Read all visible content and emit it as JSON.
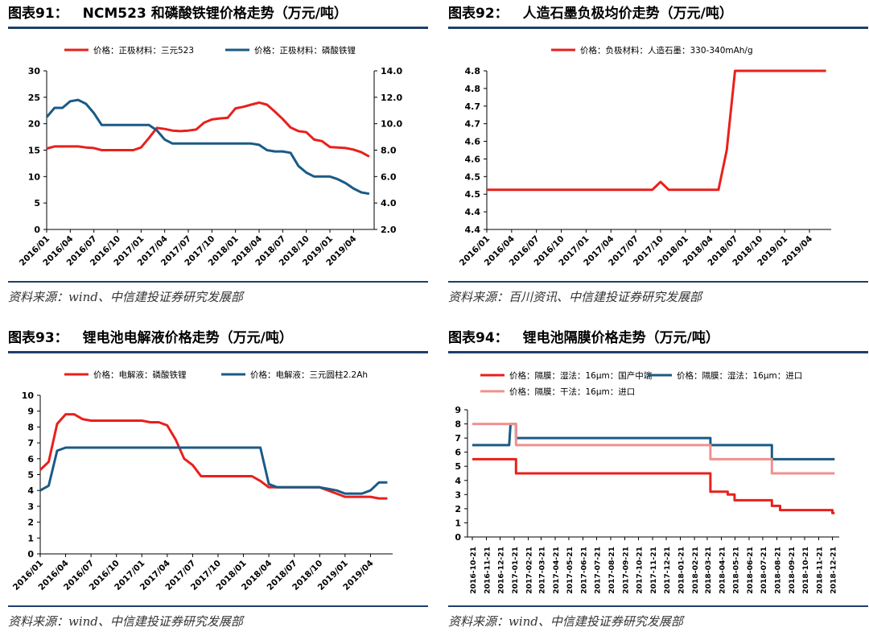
{
  "charts": [
    {
      "number": "图表91：",
      "title": "NCM523 和磷酸铁锂价格走势（万元/吨）",
      "source": "资料来源：wind、中信建投证券研究发展部"
    },
    {
      "number": "图表92：",
      "title": "人造石墨负极均价走势（万元/吨）",
      "source": "资料来源：百川资讯、中信建投证券研究发展部"
    },
    {
      "number": "图表93：",
      "title": "锂电池电解液价格走势（万元/吨）",
      "source": "资料来源：wind、中信建投证券研究发展部"
    },
    {
      "number": "图表94：",
      "title": "锂电池隔膜价格走势（万元/吨）",
      "source": "资料来源：wind、中信建投证券研究发展部"
    }
  ],
  "chart_data": [
    {
      "type": "line",
      "x": [
        "2016/01",
        "2016/02",
        "2016/03",
        "2016/04",
        "2016/05",
        "2016/06",
        "2016/07",
        "2016/08",
        "2016/09",
        "2016/10",
        "2016/11",
        "2016/12",
        "2017/01",
        "2017/02",
        "2017/03",
        "2017/04",
        "2017/05",
        "2017/06",
        "2017/07",
        "2017/08",
        "2017/09",
        "2017/10",
        "2017/11",
        "2017/12",
        "2018/01",
        "2018/02",
        "2018/03",
        "2018/04",
        "2018/05",
        "2018/06",
        "2018/07",
        "2018/08",
        "2018/09",
        "2018/10",
        "2018/11",
        "2018/12",
        "2019/01",
        "2019/02",
        "2019/03",
        "2019/04",
        "2019/05",
        "2019/06"
      ],
      "xticks": [
        "2016/01",
        "2016/04",
        "2016/07",
        "2016/10",
        "2017/01",
        "2017/04",
        "2017/07",
        "2017/10",
        "2018/01",
        "2018/04",
        "2018/07",
        "2018/10",
        "2019/01",
        "2019/04"
      ],
      "series": [
        {
          "name": "价格：正极材料：三元523",
          "axis": "left",
          "color": "#e8201c",
          "values": [
            15.3,
            15.7,
            15.7,
            15.7,
            15.7,
            15.5,
            15.4,
            15.0,
            15.0,
            15.0,
            15.0,
            15.0,
            15.5,
            17.3,
            19.2,
            19.0,
            18.7,
            18.6,
            18.7,
            18.9,
            20.2,
            20.8,
            21.0,
            21.1,
            22.9,
            23.2,
            23.6,
            24.0,
            23.6,
            22.3,
            20.9,
            19.3,
            18.6,
            18.4,
            17.0,
            16.7,
            15.6,
            15.5,
            15.4,
            15.1,
            14.6,
            13.8
          ]
        },
        {
          "name": "价格：正极材料：磷酸铁锂",
          "axis": "right",
          "color": "#1b5a86",
          "values": [
            10.5,
            11.2,
            11.2,
            11.7,
            11.8,
            11.5,
            10.8,
            9.9,
            9.9,
            9.9,
            9.9,
            9.9,
            9.9,
            9.9,
            9.5,
            8.8,
            8.5,
            8.5,
            8.5,
            8.5,
            8.5,
            8.5,
            8.5,
            8.5,
            8.5,
            8.5,
            8.5,
            8.4,
            8.0,
            7.9,
            7.9,
            7.8,
            6.8,
            6.3,
            6.0,
            6.0,
            6.0,
            5.8,
            5.5,
            5.1,
            4.8,
            4.7
          ]
        }
      ],
      "yleft": {
        "min": 0,
        "max": 30,
        "ticks": [
          "0",
          "5",
          "10",
          "15",
          "20",
          "25",
          "30"
        ]
      },
      "yright": {
        "min": 2.0,
        "max": 14.0,
        "ticks": [
          "2.0",
          "4.0",
          "6.0",
          "8.0",
          "10.0",
          "12.0",
          "14.0"
        ]
      }
    },
    {
      "type": "line",
      "x": [
        "2016/01",
        "2016/02",
        "2016/03",
        "2016/04",
        "2016/05",
        "2016/06",
        "2016/07",
        "2016/08",
        "2016/09",
        "2016/10",
        "2016/11",
        "2016/12",
        "2017/01",
        "2017/02",
        "2017/03",
        "2017/04",
        "2017/05",
        "2017/06",
        "2017/07",
        "2017/08",
        "2017/09",
        "2017/10",
        "2017/11",
        "2017/12",
        "2018/01",
        "2018/02",
        "2018/03",
        "2018/04",
        "2018/05",
        "2018/06",
        "2018/07",
        "2018/08",
        "2018/09",
        "2018/10",
        "2018/11",
        "2018/12",
        "2019/01",
        "2019/02",
        "2019/03",
        "2019/04",
        "2019/05",
        "2019/06"
      ],
      "xticks": [
        "2016/01",
        "2016/04",
        "2016/07",
        "2016/10",
        "2017/01",
        "2017/04",
        "2017/07",
        "2017/10",
        "2018/01",
        "2018/04",
        "2018/07",
        "2018/10",
        "2019/01",
        "2019/04"
      ],
      "series": [
        {
          "name": "价格：负极材料：人造石墨：330-340mAh/g",
          "axis": "left",
          "color": "#e8201c",
          "values": [
            4.5,
            4.5,
            4.5,
            4.5,
            4.5,
            4.5,
            4.5,
            4.5,
            4.5,
            4.5,
            4.5,
            4.5,
            4.5,
            4.5,
            4.5,
            4.5,
            4.5,
            4.5,
            4.5,
            4.5,
            4.5,
            4.52,
            4.5,
            4.5,
            4.5,
            4.5,
            4.5,
            4.5,
            4.5,
            4.6,
            4.8,
            4.8,
            4.8,
            4.8,
            4.8,
            4.8,
            4.8,
            4.8,
            4.8,
            4.8,
            4.8,
            4.8
          ]
        }
      ],
      "yleft": {
        "min": 4.4,
        "max": 4.8,
        "ticks": [
          "4.4",
          "4.4",
          "4.5",
          "4.5",
          "4.6",
          "4.6",
          "4.7",
          "4.7",
          "4.8",
          "4.8"
        ]
      }
    },
    {
      "type": "line",
      "x": [
        "2016/01",
        "2016/02",
        "2016/03",
        "2016/04",
        "2016/05",
        "2016/06",
        "2016/07",
        "2016/08",
        "2016/09",
        "2016/10",
        "2016/11",
        "2016/12",
        "2017/01",
        "2017/02",
        "2017/03",
        "2017/04",
        "2017/05",
        "2017/06",
        "2017/07",
        "2017/08",
        "2017/09",
        "2017/10",
        "2017/11",
        "2017/12",
        "2018/01",
        "2018/02",
        "2018/03",
        "2018/04",
        "2018/05",
        "2018/06",
        "2018/07",
        "2018/08",
        "2018/09",
        "2018/10",
        "2018/11",
        "2018/12",
        "2019/01",
        "2019/02",
        "2019/03",
        "2019/04",
        "2019/05",
        "2019/06"
      ],
      "xticks": [
        "2016/01",
        "2016/04",
        "2016/07",
        "2016/10",
        "2017/01",
        "2017/04",
        "2017/07",
        "2017/10",
        "2018/01",
        "2018/04",
        "2018/07",
        "2018/10",
        "2019/01",
        "2019/04"
      ],
      "series": [
        {
          "name": "价格：电解液：磷酸铁锂",
          "axis": "left",
          "color": "#e8201c",
          "values": [
            5.3,
            5.8,
            8.2,
            8.8,
            8.8,
            8.5,
            8.4,
            8.4,
            8.4,
            8.4,
            8.4,
            8.4,
            8.4,
            8.3,
            8.3,
            8.1,
            7.2,
            6.0,
            5.6,
            4.9,
            4.9,
            4.9,
            4.9,
            4.9,
            4.9,
            4.9,
            4.6,
            4.2,
            4.2,
            4.2,
            4.2,
            4.2,
            4.2,
            4.2,
            4.0,
            3.8,
            3.6,
            3.6,
            3.6,
            3.6,
            3.5,
            3.5
          ]
        },
        {
          "name": "价格：电解液：三元圆柱2.2Ah",
          "axis": "left",
          "color": "#1b5a86",
          "values": [
            4.0,
            4.3,
            6.5,
            6.7,
            6.7,
            6.7,
            6.7,
            6.7,
            6.7,
            6.7,
            6.7,
            6.7,
            6.7,
            6.7,
            6.7,
            6.7,
            6.7,
            6.7,
            6.7,
            6.7,
            6.7,
            6.7,
            6.7,
            6.7,
            6.7,
            6.7,
            6.7,
            4.4,
            4.2,
            4.2,
            4.2,
            4.2,
            4.2,
            4.2,
            4.1,
            4.0,
            3.8,
            3.8,
            3.8,
            4.0,
            4.5,
            4.5
          ]
        }
      ],
      "yleft": {
        "min": 0,
        "max": 10,
        "ticks": [
          "0",
          "1",
          "2",
          "3",
          "4",
          "5",
          "6",
          "7",
          "8",
          "9",
          "10"
        ]
      }
    },
    {
      "type": "line",
      "x": [
        "2016-10-21",
        "2016-11-21",
        "2016-12-21",
        "2017-01-21",
        "2017-02-21",
        "2017-03-21",
        "2017-04-21",
        "2017-05-21",
        "2017-06-21",
        "2017-07-21",
        "2017-08-21",
        "2017-09-21",
        "2017-10-21",
        "2017-11-21",
        "2017-12-21",
        "2018-01-21",
        "2018-02-21",
        "2018-03-21",
        "2018-04-21",
        "2018-05-21",
        "2018-06-21",
        "2018-07-21",
        "2018-08-21",
        "2018-09-21",
        "2018-10-21",
        "2018-11-21",
        "2018-12-21"
      ],
      "xticks": [
        "2016-10-21",
        "2016-11-21",
        "2016-12-21",
        "2017-01-21",
        "2017-02-21",
        "2017-03-21",
        "2017-04-21",
        "2017-05-21",
        "2017-06-21",
        "2017-07-21",
        "2017-08-21",
        "2017-09-21",
        "2017-10-21",
        "2017-11-21",
        "2017-12-21",
        "2018-01-21",
        "2018-02-21",
        "2018-03-21",
        "2018-04-21",
        "2018-05-21",
        "2018-06-21",
        "2018-07-21",
        "2018-08-21",
        "2018-09-21",
        "2018-10-21",
        "2018-11-21",
        "2018-12-21"
      ],
      "series": [
        {
          "name": "价格：隔膜：湿法：16μm：国产中端",
          "axis": "left",
          "color": "#e8201c",
          "step": true,
          "points": [
            [
              "2016-10-21",
              5.5
            ],
            [
              "2017-01-25",
              5.5
            ],
            [
              "2017-01-25",
              4.5
            ],
            [
              "2018-03-28",
              4.5
            ],
            [
              "2018-03-28",
              3.2
            ],
            [
              "2018-05-05",
              3.2
            ],
            [
              "2018-05-05",
              3.0
            ],
            [
              "2018-05-20",
              3.0
            ],
            [
              "2018-05-20",
              2.6
            ],
            [
              "2018-08-10",
              2.6
            ],
            [
              "2018-08-10",
              2.2
            ],
            [
              "2018-08-28",
              2.2
            ],
            [
              "2018-08-28",
              1.9
            ],
            [
              "2018-12-21",
              1.9
            ],
            [
              "2018-12-21",
              1.7
            ],
            [
              "2018-12-26",
              1.7
            ]
          ]
        },
        {
          "name": "价格：隔膜：湿法：16μm：进口",
          "axis": "left",
          "color": "#1b5a86",
          "step": true,
          "points": [
            [
              "2016-10-21",
              6.5
            ],
            [
              "2017-01-10",
              6.5
            ],
            [
              "2017-01-13",
              8.0
            ],
            [
              "2017-01-25",
              8.0
            ],
            [
              "2017-01-25",
              7.0
            ],
            [
              "2018-03-28",
              7.0
            ],
            [
              "2018-03-28",
              6.5
            ],
            [
              "2018-08-10",
              6.5
            ],
            [
              "2018-08-10",
              5.5
            ],
            [
              "2018-12-26",
              5.5
            ]
          ]
        },
        {
          "name": "价格：隔膜：干法：16μm：进口",
          "axis": "left",
          "color": "#f19090",
          "step": true,
          "points": [
            [
              "2016-10-21",
              8.0
            ],
            [
              "2017-01-25",
              8.0
            ],
            [
              "2017-01-25",
              6.5
            ],
            [
              "2018-03-28",
              6.5
            ],
            [
              "2018-03-28",
              5.5
            ],
            [
              "2018-08-10",
              5.5
            ],
            [
              "2018-08-10",
              4.5
            ],
            [
              "2018-12-26",
              4.5
            ]
          ]
        }
      ],
      "yleft": {
        "min": 0,
        "max": 9,
        "ticks": [
          "0",
          "1",
          "2",
          "3",
          "4",
          "5",
          "6",
          "7",
          "8",
          "9"
        ]
      }
    }
  ]
}
